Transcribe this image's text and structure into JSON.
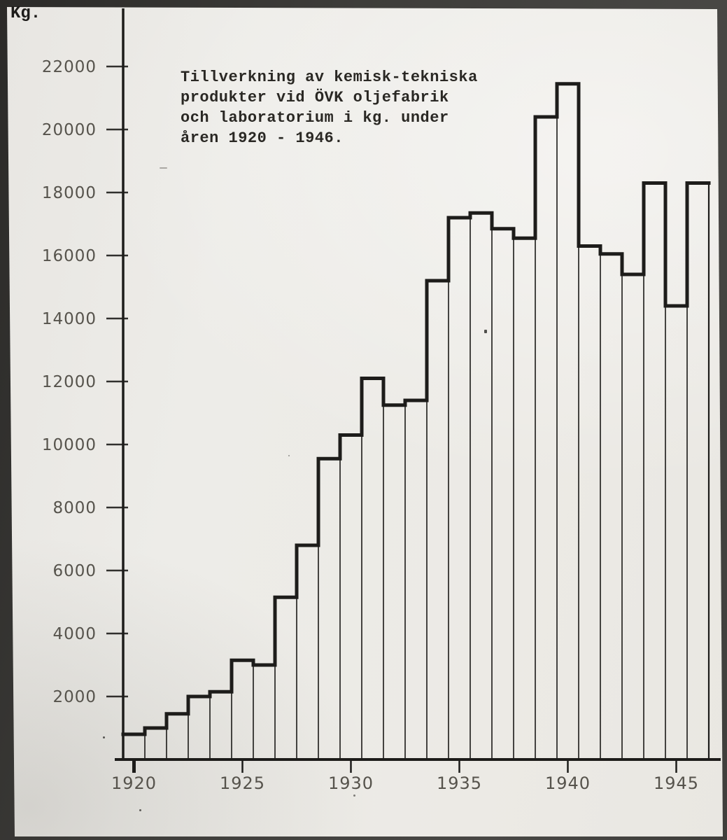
{
  "chart_data": {
    "type": "bar",
    "style": "outlined-step-histogram",
    "title": "Tillverkning av kemisk-tekniska produkter vid ÖVK oljefabrik och laboratorium i kg. under åren 1920 - 1946.",
    "title_lines": [
      "Tillverkning av kemisk-tekniska",
      "produkter vid ÖVK oljefabrik",
      "och laboratorium i kg. under",
      "åren 1920 - 1946."
    ],
    "ylabel": "Kg.",
    "unit": "kg",
    "categories": [
      1920,
      1921,
      1922,
      1923,
      1924,
      1925,
      1926,
      1927,
      1928,
      1929,
      1930,
      1931,
      1932,
      1933,
      1934,
      1935,
      1936,
      1937,
      1938,
      1939,
      1940,
      1941,
      1942,
      1943,
      1944,
      1945,
      1946
    ],
    "values": [
      800,
      1000,
      1450,
      2000,
      2150,
      3150,
      3000,
      5150,
      6800,
      9550,
      10300,
      12100,
      11250,
      11400,
      15200,
      17200,
      17350,
      16850,
      16550,
      20400,
      21450,
      16300,
      16050,
      15400,
      18300,
      14400,
      18300
    ],
    "y_ticks": [
      2000,
      4000,
      6000,
      8000,
      10000,
      12000,
      14000,
      16000,
      18000,
      20000,
      22000
    ],
    "x_tick_years": [
      1920,
      1925,
      1930,
      1935,
      1940,
      1945
    ],
    "ylim": [
      0,
      22500
    ],
    "grid": false,
    "legend": false,
    "ink_color": "#1d1c1a",
    "label_color": "#56534c",
    "paper_color": "#edece8",
    "border_color": "#3e3d3a"
  }
}
